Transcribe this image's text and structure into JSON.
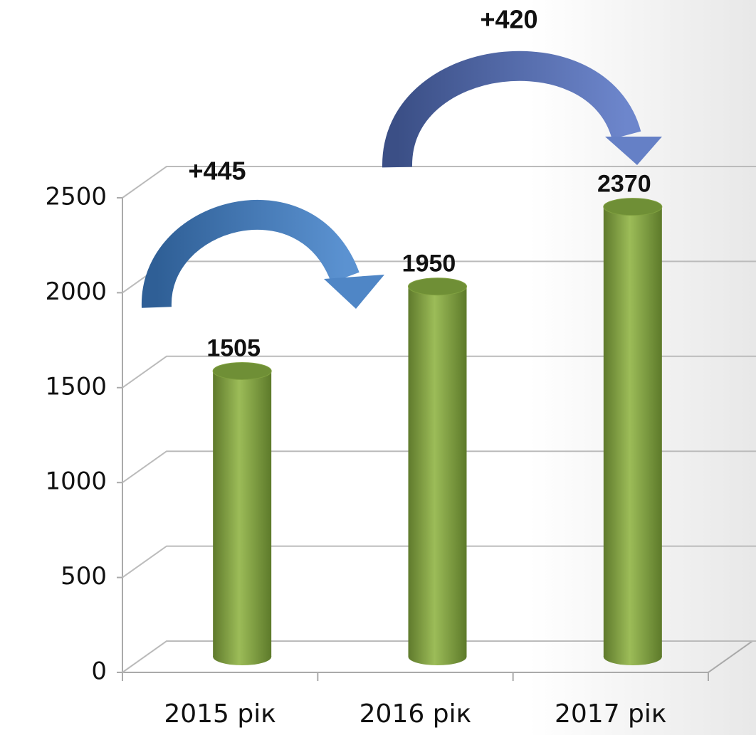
{
  "chart_data": {
    "type": "bar3d",
    "categories": [
      "2015 рік",
      "2016 рік",
      "2017 рік"
    ],
    "values": [
      1505,
      1950,
      2370
    ],
    "color": "#8aaa4a",
    "ylim": [
      0,
      2500
    ],
    "yticks": [
      0,
      500,
      1000,
      1500,
      2000,
      2500
    ],
    "grid": true,
    "annotations": [
      "+445",
      "+420"
    ]
  }
}
